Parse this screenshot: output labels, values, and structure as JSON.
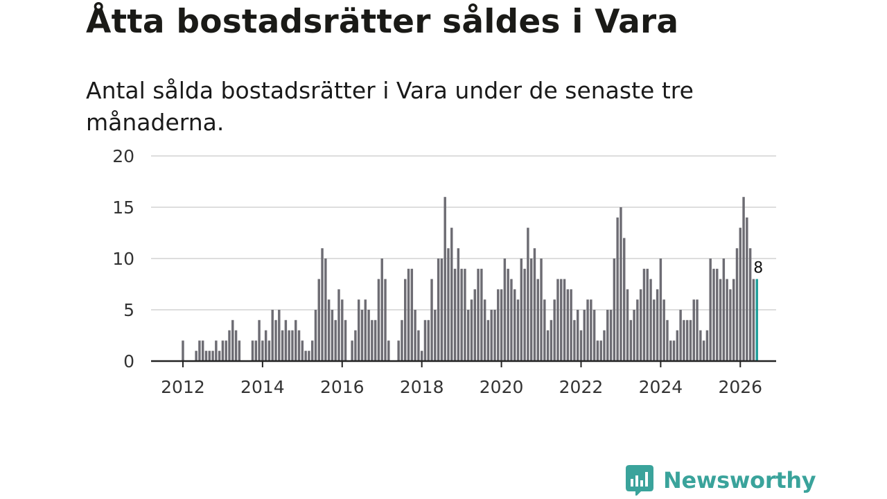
{
  "title": "Åtta bostadsrätter såldes i Vara",
  "subtitle": "Antal sålda bostadsrätter i Vara under de senaste tre månaderna.",
  "brand": {
    "name": "Newsworthy",
    "color": "#3aa39b",
    "icon": "newsworthy-logo-icon"
  },
  "colors": {
    "bar": "#6d6c73",
    "highlight": "#1f9e9a",
    "grid": "#dddddd",
    "axis": "#222222"
  },
  "chart_data": {
    "type": "bar",
    "title": "Åtta bostadsrätter såldes i Vara",
    "xlabel": "",
    "ylabel": "",
    "ylim": [
      0,
      20
    ],
    "yticks": [
      "0",
      "5",
      "10",
      "15",
      "20"
    ],
    "xlim": [
      2011.2,
      2026.9
    ],
    "xticks": [
      "2012",
      "2014",
      "2016",
      "2018",
      "2020",
      "2022",
      "2024",
      "2026"
    ],
    "grid": true,
    "start_month": "2011-09",
    "last_value_label": "8",
    "values": [
      0,
      0,
      0,
      0,
      2,
      0,
      0,
      0,
      1,
      2,
      2,
      1,
      1,
      1,
      2,
      1,
      2,
      2,
      3,
      4,
      3,
      2,
      0,
      0,
      0,
      2,
      2,
      4,
      2,
      3,
      2,
      5,
      4,
      5,
      3,
      4,
      3,
      3,
      4,
      3,
      2,
      1,
      1,
      2,
      5,
      8,
      11,
      10,
      6,
      5,
      4,
      7,
      6,
      4,
      0,
      2,
      3,
      6,
      5,
      6,
      5,
      4,
      4,
      8,
      10,
      8,
      2,
      0,
      0,
      2,
      4,
      8,
      9,
      9,
      5,
      3,
      1,
      4,
      4,
      8,
      5,
      10,
      10,
      16,
      11,
      13,
      9,
      11,
      9,
      9,
      5,
      6,
      7,
      9,
      9,
      6,
      4,
      5,
      5,
      7,
      7,
      10,
      9,
      8,
      7,
      6,
      10,
      9,
      13,
      10,
      11,
      8,
      10,
      6,
      3,
      4,
      6,
      8,
      8,
      8,
      7,
      7,
      4,
      5,
      3,
      5,
      6,
      6,
      5,
      2,
      2,
      3,
      5,
      5,
      10,
      14,
      15,
      12,
      7,
      4,
      5,
      6,
      7,
      9,
      9,
      8,
      6,
      7,
      10,
      6,
      4,
      2,
      2,
      3,
      5,
      4,
      4,
      4,
      6,
      6,
      3,
      2,
      3,
      10,
      9,
      9,
      8,
      10,
      8,
      7,
      8,
      11,
      13,
      16,
      14,
      11,
      8,
      8
    ]
  }
}
